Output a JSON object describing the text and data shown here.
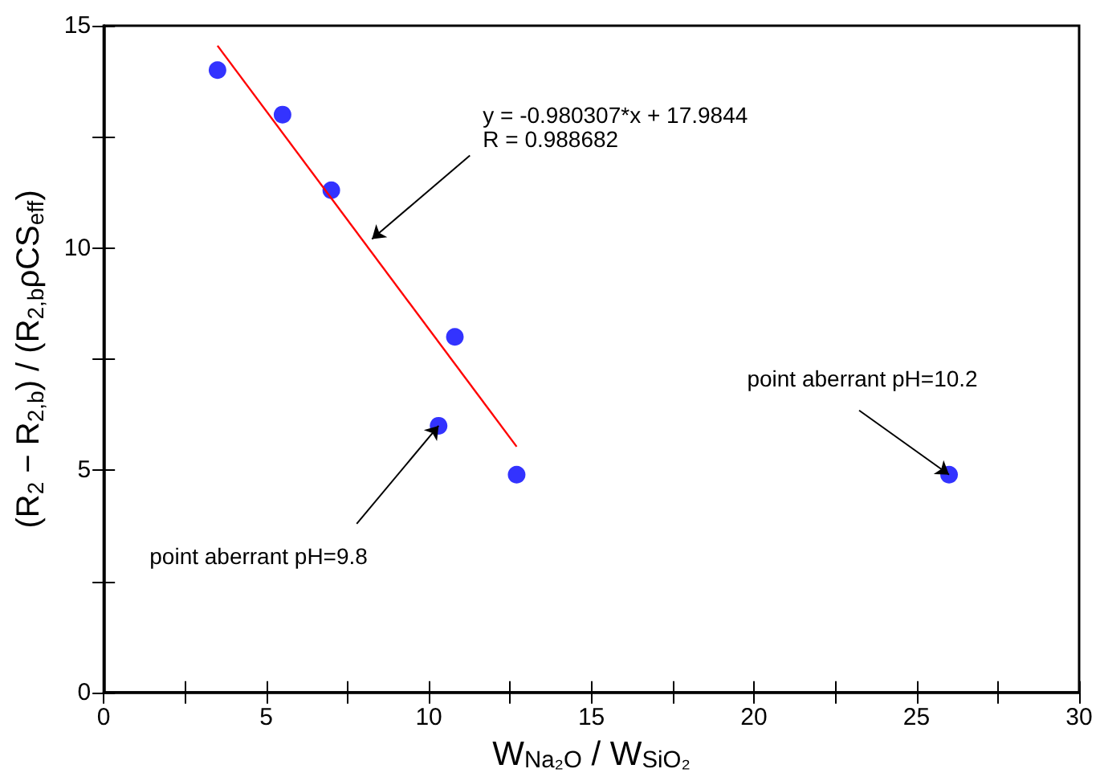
{
  "chart_data": {
    "type": "scatter",
    "xlabel": "W$_{Na₂O}$ / W$_{SiO₂}$",
    "ylabel": "(R$_{2}$ − R$_{2,b}$) / (R$_{2,b}$ρCS$_{eff}$)",
    "xlim": [
      0,
      30
    ],
    "ylim": [
      0,
      15
    ],
    "xticks": [
      0,
      {
        "value": 2.5,
        "label": null
      },
      5,
      {
        "value": 7.5,
        "label": null
      },
      10,
      {
        "value": 12.5,
        "label": null
      },
      15,
      {
        "value": 17.5,
        "label": null
      },
      20,
      {
        "value": 22.5,
        "label": null
      },
      25,
      {
        "value": 27.5,
        "label": null
      },
      30
    ],
    "yticks": [
      0,
      {
        "value": 2.5,
        "label": null
      },
      5,
      {
        "value": 7.5,
        "label": null
      },
      10,
      {
        "value": 12.5,
        "label": null
      },
      15
    ],
    "marker": "circle",
    "series": [
      {
        "color": "#0000ff",
        "x": [
          3.5,
          5.5,
          7,
          10.8,
          10.3,
          12.7,
          26
        ],
        "values": [
          14,
          13,
          11.3,
          8,
          6,
          4.9,
          4.9
        ]
      },
      {
        "type": "line",
        "color": "#ff0000",
        "marker": "none",
        "x": [
          3.5,
          12.7
        ],
        "values": [
          14.55,
          5.53
        ]
      }
    ],
    "annotations": [
      {
        "text": "y = -0.980307*x + 17.9844\nR = 0.988682",
        "x": 8.25,
        "y": 10.2
      },
      {
        "text": "point aberrant pH=9.8",
        "x": 10.3,
        "y": 6
      },
      {
        "text": "point aberrant pH=10.2",
        "x": 26,
        "y": 4.9
      }
    ]
  }
}
